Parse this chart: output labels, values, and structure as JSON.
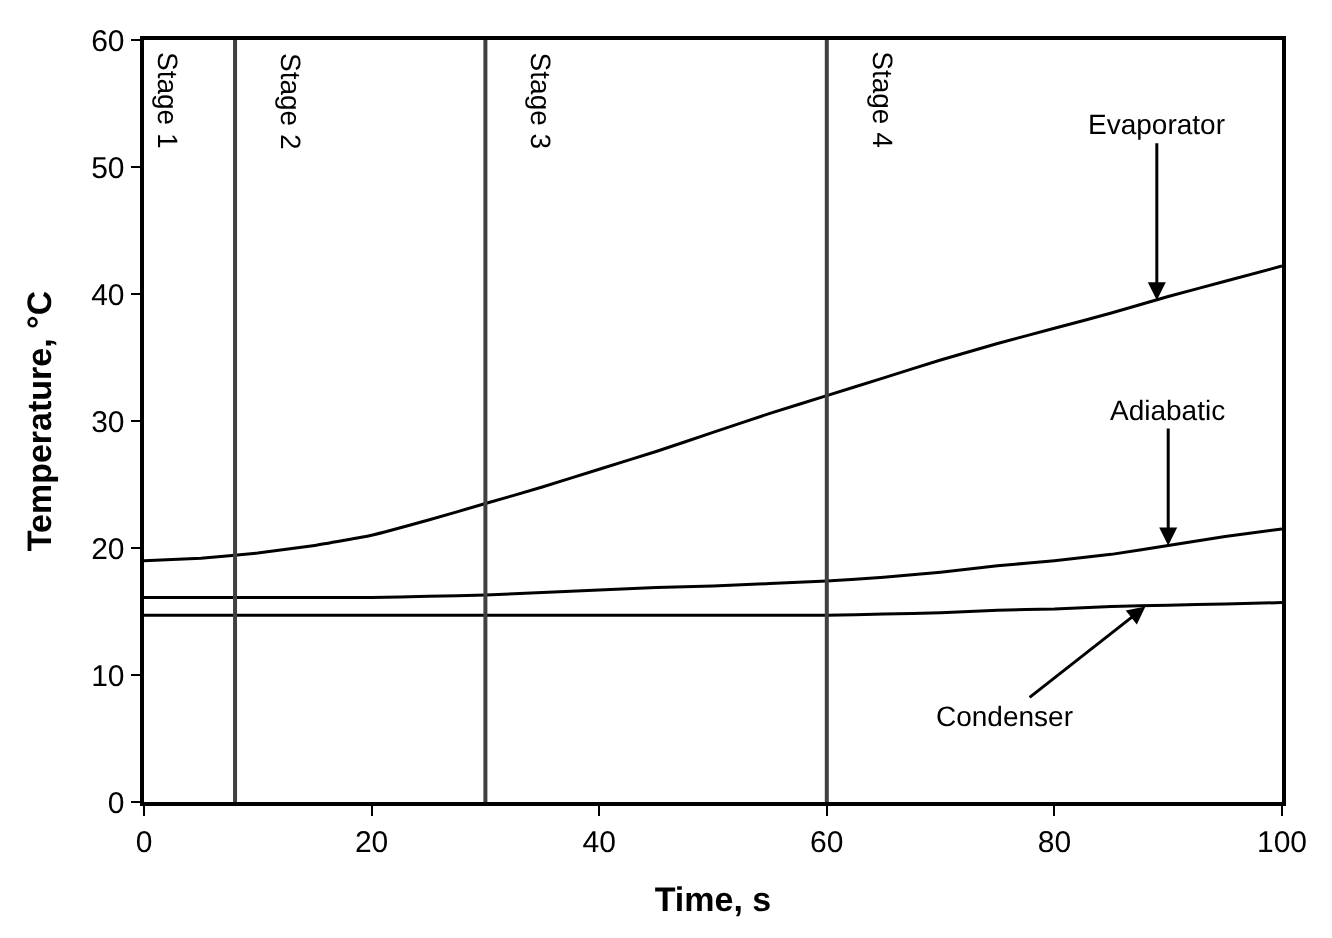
{
  "chart_data": {
    "type": "line",
    "xlabel": "Time, s",
    "ylabel": "Temperature, °C",
    "xlim": [
      0,
      100
    ],
    "ylim": [
      0,
      60
    ],
    "xticks": [
      0,
      20,
      40,
      60,
      80,
      100
    ],
    "yticks": [
      0,
      10,
      20,
      30,
      40,
      50,
      60
    ],
    "marker": "none",
    "line_style": "solid",
    "x": [
      0,
      5,
      10,
      15,
      20,
      25,
      30,
      35,
      40,
      45,
      50,
      55,
      60,
      65,
      70,
      75,
      80,
      85,
      90,
      95,
      100
    ],
    "series": [
      {
        "color": "#000000",
        "values": [
          19.0,
          19.2,
          19.6,
          20.2,
          21.0,
          22.2,
          23.5,
          24.8,
          26.2,
          27.6,
          29.1,
          30.6,
          32.0,
          33.4,
          34.8,
          36.1,
          37.3,
          38.5,
          39.8,
          41.0,
          42.2
        ]
      },
      {
        "color": "#000000",
        "values": [
          16.1,
          16.1,
          16.1,
          16.1,
          16.1,
          16.2,
          16.3,
          16.5,
          16.7,
          16.9,
          17.0,
          17.2,
          17.4,
          17.7,
          18.1,
          18.6,
          19.0,
          19.5,
          20.2,
          20.9,
          21.5
        ]
      },
      {
        "color": "#000000",
        "values": [
          14.7,
          14.7,
          14.7,
          14.7,
          14.7,
          14.7,
          14.7,
          14.7,
          14.7,
          14.7,
          14.7,
          14.7,
          14.7,
          14.8,
          14.9,
          15.1,
          15.2,
          15.4,
          15.5,
          15.6,
          15.7
        ]
      }
    ],
    "ref_lines": [
      {
        "axis": "x",
        "value": 8,
        "color": "#404040"
      },
      {
        "axis": "x",
        "value": 30,
        "color": "#404040"
      },
      {
        "axis": "x",
        "value": 60,
        "color": "#404040"
      }
    ],
    "annotations": [
      "Stage 1",
      "Stage 2",
      "Stage 3",
      "Stage 4",
      {
        "text": "Evaporator",
        "x": 89,
        "y": 39.5
      },
      {
        "text": "Adiabatic",
        "x": 90,
        "y": 20.2
      },
      {
        "text": "Condenser",
        "x": 88,
        "y": 15.4
      }
    ]
  }
}
